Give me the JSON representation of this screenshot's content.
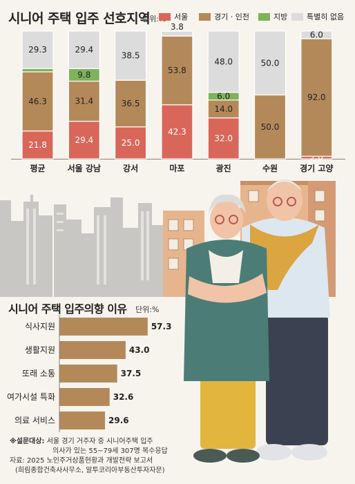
{
  "chart_data": [
    {
      "type": "bar",
      "stacked": true,
      "percent": true,
      "title": "시니어 주택 입주 선호지역",
      "unit": "단위:%",
      "legend_position": "top-right",
      "categories": [
        "평균",
        "서울 강남",
        "강서",
        "마포",
        "광진",
        "수원",
        "경기 고양"
      ],
      "series": [
        {
          "name": "서울",
          "color": "#d8675a",
          "values": [
            21.8,
            29.4,
            25.0,
            42.3,
            32.0,
            0,
            2.0
          ]
        },
        {
          "name": "경기 · 인천",
          "color": "#b4895a",
          "values": [
            46.3,
            31.4,
            36.5,
            53.8,
            14.0,
            50.0,
            92.0
          ]
        },
        {
          "name": "지방",
          "color": "#7fb25b",
          "values": [
            2.6,
            9.8,
            0,
            0,
            6.0,
            0,
            0
          ]
        },
        {
          "name": "특별히 없음",
          "color": "#dcdcdc",
          "values": [
            29.3,
            29.4,
            38.5,
            3.8,
            48.0,
            50.0,
            6.0
          ]
        }
      ],
      "value_labels": [
        [
          "21.8",
          "46.3",
          "2.6",
          "29.3"
        ],
        [
          "29.4",
          "31.4",
          "9.8",
          "29.4"
        ],
        [
          "25.0",
          "36.5",
          "",
          "38.5"
        ],
        [
          "42.3",
          "53.8",
          "",
          "3.8"
        ],
        [
          "32.0",
          "14.0",
          "6.0",
          "48.0"
        ],
        [
          "",
          "50.0",
          "",
          "50.0"
        ],
        [
          "2.0",
          "92.0",
          "",
          "6.0"
        ]
      ],
      "ylim": [
        0,
        100
      ]
    },
    {
      "type": "bar",
      "orientation": "horizontal",
      "title": "시니어 주택 입주의향 이유",
      "unit": "단위:%",
      "color": "#b4895a",
      "categories": [
        "식사지원",
        "생활지원",
        "또래 소통",
        "여가시설 특화",
        "의료 서비스"
      ],
      "values": [
        57.3,
        43.0,
        37.5,
        32.6,
        29.6
      ],
      "value_labels": [
        "57.3",
        "43.0",
        "37.5",
        "32.6",
        "29.6"
      ],
      "xlim": [
        0,
        65
      ]
    }
  ],
  "notes": {
    "survey_lead": "※설문대상:",
    "survey": "서울 경기 거주자 중 시니어주택 입주",
    "survey2": "의사가 있는 55~79세 307명 복수응답",
    "source": "자료: 2025 노인주거상품현황과 개발전략 보고서",
    "source2": "(희림종합건축사사무소, 알투코리아부동산투자자문)"
  },
  "colors": {
    "background": "#f7f4ee",
    "building": "#c8c7c4",
    "apartment": "#e7b58d",
    "grandma_coat": "#4b7d76",
    "grandma_pants": "#e2b63c",
    "grandpa_shirt": "#dde7ef",
    "grandpa_scarf": "#dba542",
    "grandpa_pants": "#3b4150"
  }
}
